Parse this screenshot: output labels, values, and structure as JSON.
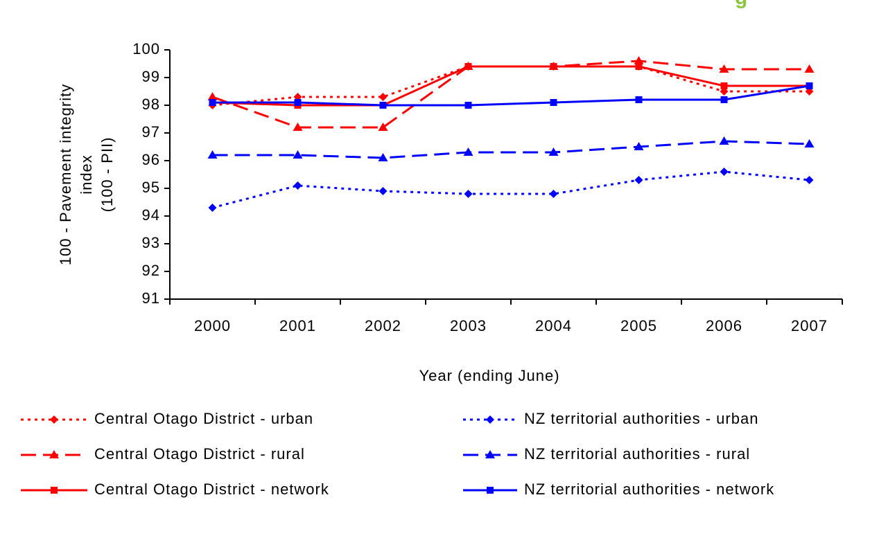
{
  "header_fragment": "g",
  "chart_data": {
    "type": "line",
    "ylabel_lines": [
      "100 - Pavement integrity",
      "index",
      "(100 - PII)"
    ],
    "xlabel": "Year (ending June)",
    "categories": [
      "2000",
      "2001",
      "2002",
      "2003",
      "2004",
      "2005",
      "2006",
      "2007"
    ],
    "ylim": [
      91,
      100
    ],
    "yticks": [
      91,
      92,
      93,
      94,
      95,
      96,
      97,
      98,
      99,
      100
    ],
    "grid": false,
    "legend": "bottom",
    "series": [
      {
        "name": "Central Otago District - urban",
        "color": "#ff0000",
        "dash": "dotted",
        "marker": "diamond",
        "values": [
          98.0,
          98.3,
          98.3,
          99.4,
          99.4,
          99.4,
          98.5,
          98.5
        ]
      },
      {
        "name": "NZ territorial authorities - urban",
        "color": "#0000ff",
        "dash": "dotted",
        "marker": "diamond",
        "values": [
          94.3,
          95.1,
          94.9,
          94.8,
          94.8,
          95.3,
          95.6,
          95.3
        ]
      },
      {
        "name": "Central Otago District - rural",
        "color": "#ff0000",
        "dash": "dashed",
        "marker": "triangle",
        "values": [
          98.3,
          97.2,
          97.2,
          99.4,
          99.4,
          99.6,
          99.3,
          99.3
        ]
      },
      {
        "name": "NZ territorial authorities - rural",
        "color": "#0000ff",
        "dash": "dashed",
        "marker": "triangle",
        "values": [
          96.2,
          96.2,
          96.1,
          96.3,
          96.3,
          96.5,
          96.7,
          96.6
        ]
      },
      {
        "name": "Central Otago District - network",
        "color": "#ff0000",
        "dash": "solid",
        "marker": "square",
        "values": [
          98.1,
          98.0,
          98.0,
          99.4,
          99.4,
          99.4,
          98.7,
          98.7
        ]
      },
      {
        "name": "NZ territorial authorities - network",
        "color": "#0000ff",
        "dash": "solid",
        "marker": "square",
        "values": [
          98.1,
          98.1,
          98.0,
          98.0,
          98.1,
          98.2,
          98.2,
          98.7
        ]
      }
    ]
  }
}
